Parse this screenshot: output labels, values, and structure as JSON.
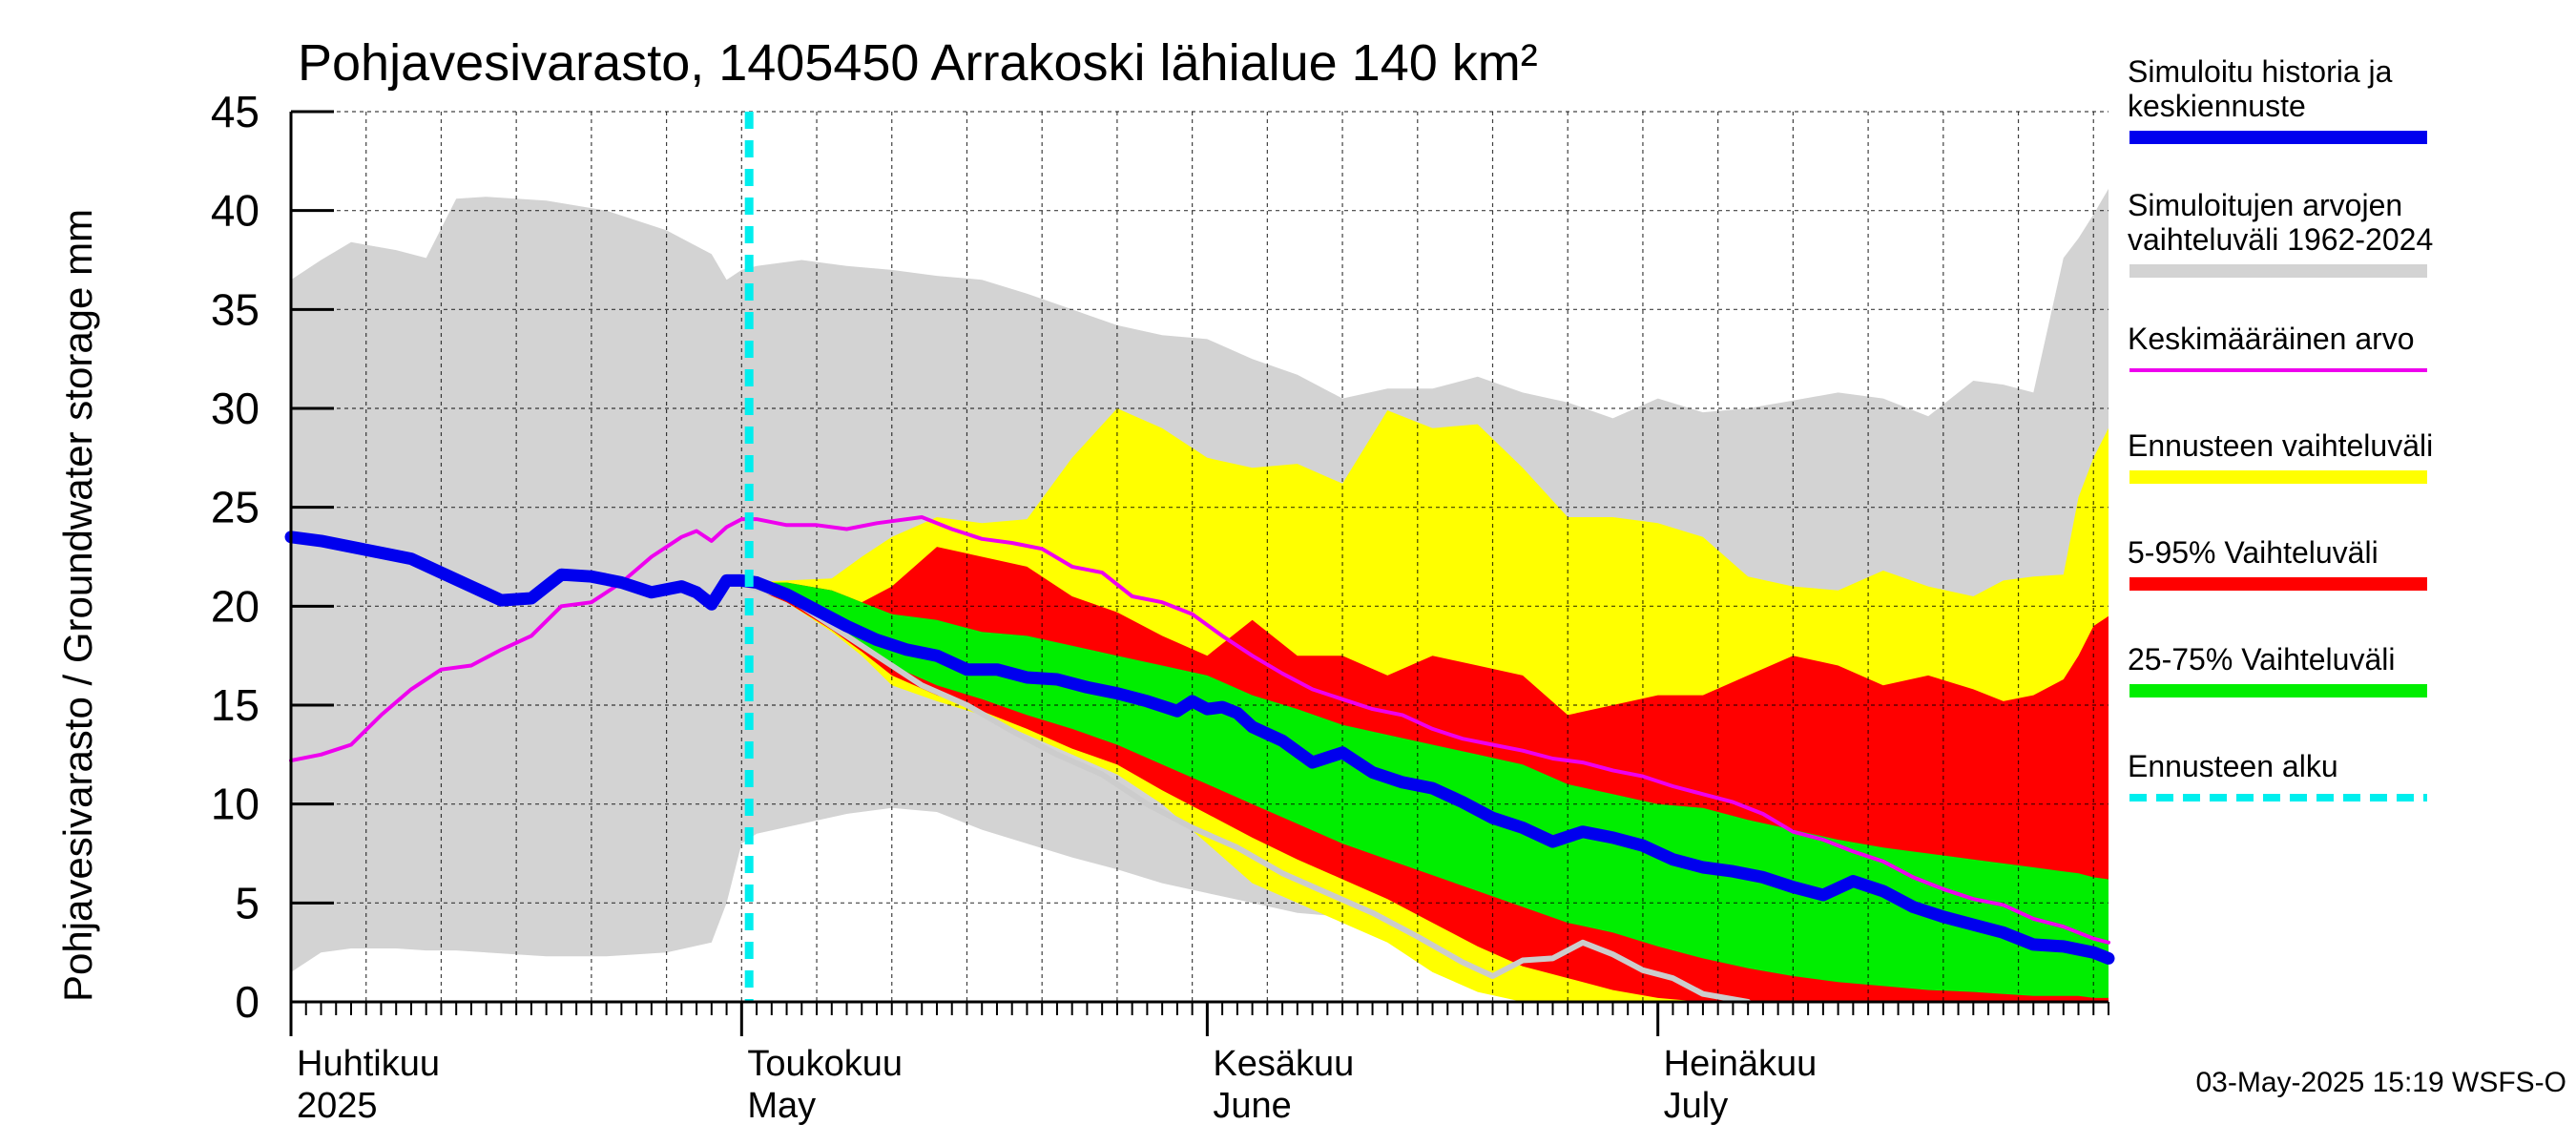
{
  "chart_data": {
    "type": "area",
    "title": "Pohjavesivarasto, 1405450 Arrakoski lähialue 140 km²",
    "ylabel": "Pohjavesivarasto / Groundwater storage   mm",
    "ylim": [
      0,
      45
    ],
    "yticks": [
      0,
      5,
      10,
      15,
      20,
      25,
      30,
      35,
      40,
      45
    ],
    "xlim": [
      0,
      121
    ],
    "month_labels": [
      {
        "day": 0,
        "top": "Huhtikuu",
        "bottom": "2025"
      },
      {
        "day": 30,
        "top": "Toukokuu",
        "bottom": "May"
      },
      {
        "day": 61,
        "top": "Kesäkuu",
        "bottom": "June"
      },
      {
        "day": 91,
        "top": "Heinäkuu",
        "bottom": "July"
      }
    ],
    "forecast_start_day": 30.5,
    "footer": "03-May-2025 15:19 WSFS-O",
    "legend": [
      {
        "label": "Simuloitu historia ja keskiennuste",
        "lines": [
          "Simuloitu historia ja",
          "keskiennuste"
        ],
        "color": "#0000ee",
        "style": "thick"
      },
      {
        "label": "Simuloitujen arvojen vaihteluväli 1962-2024",
        "lines": [
          "Simuloitujen arvojen",
          "vaihteluväli 1962-2024"
        ],
        "color": "#d3d3d3",
        "style": "thick"
      },
      {
        "label": "Keskimääräinen arvo",
        "lines": [
          "Keskimääräinen arvo"
        ],
        "color": "#ee00ee",
        "style": "thin"
      },
      {
        "label": "Ennusteen vaihteluväli",
        "lines": [
          "Ennusteen vaihteluväli"
        ],
        "color": "#ffff00",
        "style": "thick"
      },
      {
        "label": "5-95% Vaihteluväli",
        "lines": [
          "5-95% Vaihteluväli"
        ],
        "color": "#ff0000",
        "style": "thick"
      },
      {
        "label": "25-75% Vaihteluväli",
        "lines": [
          "25-75% Vaihteluväli"
        ],
        "color": "#00ee00",
        "style": "thick"
      },
      {
        "label": "Ennusteen alku",
        "lines": [
          "Ennusteen alku"
        ],
        "color": "#00eeee",
        "style": "dashed"
      }
    ],
    "bands": {
      "history_range": {
        "color": "#d3d3d3",
        "x": [
          0,
          2,
          4,
          7,
          9,
          11,
          13,
          17,
          21,
          25,
          28,
          29,
          30,
          31,
          34,
          37,
          40,
          43,
          46,
          49,
          52,
          55,
          58,
          61,
          64,
          67,
          70,
          73,
          76,
          79,
          82,
          85,
          88,
          91,
          94,
          97,
          100,
          103,
          106,
          109,
          112,
          114,
          116,
          118,
          119,
          120,
          121
        ],
        "upper": [
          36.5,
          37.5,
          38.4,
          38,
          37.6,
          40.6,
          40.7,
          40.5,
          40,
          39,
          37.8,
          36.5,
          37,
          37.2,
          37.5,
          37.2,
          37,
          36.7,
          36.5,
          35.8,
          35,
          34.2,
          33.7,
          33.5,
          32.5,
          31.7,
          30.5,
          31,
          31,
          31.6,
          30.8,
          30.3,
          29.5,
          30.5,
          29.8,
          30,
          30.4,
          30.8,
          30.5,
          29.6,
          31.4,
          31.2,
          30.8,
          37.6,
          38.6,
          39.8,
          41.1
        ],
        "lower": [
          1.5,
          2.5,
          2.7,
          2.7,
          2.6,
          2.6,
          2.5,
          2.3,
          2.3,
          2.5,
          3,
          5,
          8,
          8.5,
          9,
          9.5,
          9.8,
          9.6,
          8.7,
          8,
          7.3,
          6.7,
          6,
          5.5,
          5,
          4.5,
          4.3,
          4,
          4,
          3.6,
          3,
          2.2,
          1.6,
          1,
          0.4,
          0,
          0,
          0,
          0,
          0,
          0,
          0,
          0,
          0,
          0,
          0,
          0
        ]
      },
      "forecast_range": {
        "color": "#ffff00",
        "x": [
          30.5,
          33,
          36,
          38,
          40,
          43,
          46,
          49,
          52,
          55,
          58,
          61,
          64,
          67,
          70,
          73,
          76,
          79,
          82,
          85,
          88,
          91,
          94,
          97,
          100,
          103,
          106,
          109,
          112,
          114,
          116,
          118,
          119,
          120,
          121
        ],
        "upper": [
          21.2,
          21.3,
          21.4,
          22.5,
          23.5,
          24.5,
          24.2,
          24.4,
          27.5,
          30,
          29,
          27.5,
          27,
          27.2,
          26.2,
          29.9,
          29,
          29.2,
          27,
          24.5,
          24.5,
          24.2,
          23.5,
          21.5,
          21,
          20.8,
          21.8,
          21,
          20.5,
          21.3,
          21.5,
          21.6,
          25.5,
          27.5,
          29
        ],
        "lower": [
          21,
          20.2,
          18.7,
          17.5,
          16,
          15.2,
          14.5,
          13.5,
          12.5,
          11.5,
          10,
          8,
          6,
          5,
          4,
          3,
          1.5,
          0.5,
          0,
          0,
          0,
          0,
          0,
          0,
          0,
          0,
          0,
          0,
          0,
          0,
          0,
          0,
          0,
          0,
          0
        ]
      },
      "p5_95": {
        "color": "#ff0000",
        "x": [
          30.5,
          33,
          36,
          38,
          40,
          43,
          46,
          49,
          52,
          55,
          58,
          61,
          64,
          67,
          70,
          73,
          76,
          79,
          82,
          85,
          88,
          91,
          94,
          97,
          100,
          103,
          106,
          109,
          112,
          114,
          116,
          118,
          119,
          120,
          121
        ],
        "upper": [
          21.2,
          21.2,
          20.8,
          20.2,
          21,
          23,
          22.5,
          22,
          20.5,
          19.7,
          18.5,
          17.5,
          19.3,
          17.5,
          17.5,
          16.5,
          17.5,
          17,
          16.5,
          14.5,
          15,
          15.5,
          15.5,
          16.5,
          17.5,
          17,
          16,
          16.5,
          15.8,
          15.2,
          15.5,
          16.3,
          17.5,
          19,
          19.5
        ],
        "lower": [
          21,
          20.2,
          18.8,
          17.7,
          16.5,
          15.5,
          14.7,
          13.8,
          12.8,
          12,
          10.7,
          9.5,
          8.3,
          7.2,
          6.2,
          5.2,
          4,
          2.8,
          1.8,
          1.2,
          0.6,
          0.2,
          0,
          0,
          0,
          0,
          0,
          0,
          0,
          0,
          0,
          0,
          0,
          0,
          0
        ]
      },
      "p25_75": {
        "color": "#00ee00",
        "x": [
          30.5,
          33,
          36,
          38,
          40,
          43,
          46,
          49,
          52,
          55,
          58,
          61,
          64,
          67,
          70,
          73,
          76,
          79,
          82,
          85,
          88,
          91,
          94,
          97,
          100,
          103,
          106,
          109,
          112,
          114,
          116,
          118,
          119,
          120,
          121
        ],
        "upper": [
          21.2,
          21.2,
          20.8,
          20.2,
          19.6,
          19.3,
          18.7,
          18.5,
          18,
          17.5,
          17,
          16.5,
          15.5,
          14.8,
          14,
          13.5,
          13,
          12.5,
          12,
          11,
          10.5,
          10,
          9.8,
          9.2,
          8.7,
          8.2,
          7.8,
          7.5,
          7.2,
          7,
          6.8,
          6.6,
          6.5,
          6.3,
          6.2
        ],
        "lower": [
          21,
          20.5,
          19.2,
          18,
          17,
          16,
          15.3,
          14.5,
          13.8,
          13,
          12,
          11,
          10,
          9,
          8,
          7.2,
          6.4,
          5.6,
          4.8,
          4,
          3.5,
          2.8,
          2.2,
          1.7,
          1.3,
          1,
          0.8,
          0.6,
          0.5,
          0.4,
          0.3,
          0.3,
          0.3,
          0.2,
          0.2
        ]
      }
    },
    "series": [
      {
        "name": "Keskimääräinen arvo",
        "color": "#ee00ee",
        "x": [
          0,
          2,
          4,
          6,
          8,
          10,
          12,
          14,
          16,
          18,
          20,
          22,
          24,
          26,
          27,
          28,
          29,
          30,
          31,
          33,
          35,
          37,
          39,
          40,
          42,
          44,
          46,
          48,
          50,
          52,
          54,
          56,
          58,
          60,
          62,
          64,
          66,
          68,
          70,
          72,
          74,
          76,
          78,
          80,
          82,
          84,
          86,
          88,
          90,
          92,
          94,
          96,
          98,
          100,
          102,
          104,
          106,
          108,
          110,
          112,
          114,
          116,
          118,
          120,
          121
        ],
        "values": [
          12.2,
          12.5,
          13,
          14.5,
          15.8,
          16.8,
          17,
          17.8,
          18.5,
          20,
          20.2,
          21.2,
          22.5,
          23.5,
          23.8,
          23.3,
          24,
          24.4,
          24.4,
          24.1,
          24.1,
          23.9,
          24.2,
          24.3,
          24.5,
          23.9,
          23.4,
          23.2,
          22.9,
          22,
          21.7,
          20.5,
          20.2,
          19.6,
          18.5,
          17.5,
          16.6,
          15.8,
          15.3,
          14.8,
          14.5,
          13.8,
          13.3,
          13,
          12.7,
          12.3,
          12.1,
          11.7,
          11.4,
          10.9,
          10.5,
          10.1,
          9.5,
          8.6,
          8.2,
          7.6,
          7.1,
          6.3,
          5.7,
          5.2,
          4.9,
          4.2,
          3.8,
          3.2,
          3
        ]
      },
      {
        "name": "Simuloitu historia ja keskiennuste",
        "color": "#0000ee",
        "x": [
          0,
          2,
          4,
          6,
          8,
          10,
          12,
          14,
          16,
          17,
          18,
          20,
          22,
          24,
          26,
          27,
          28,
          29,
          30,
          31,
          33,
          35,
          37,
          39,
          41,
          43,
          45,
          47,
          49,
          51,
          53,
          55,
          57,
          59,
          60,
          61,
          62,
          63,
          64,
          66,
          68,
          70,
          72,
          74,
          76,
          78,
          80,
          82,
          84,
          86,
          88,
          90,
          92,
          94,
          96,
          98,
          100,
          102,
          104,
          106,
          108,
          110,
          112,
          114,
          116,
          118,
          120,
          121
        ],
        "values": [
          23.5,
          23.3,
          23,
          22.7,
          22.4,
          21.7,
          21,
          20.3,
          20.4,
          21,
          21.6,
          21.5,
          21.2,
          20.7,
          21,
          20.7,
          20.1,
          21.3,
          21.3,
          21.2,
          20.6,
          19.8,
          19,
          18.3,
          17.8,
          17.5,
          16.8,
          16.8,
          16.4,
          16.3,
          15.9,
          15.6,
          15.2,
          14.7,
          15.2,
          14.8,
          14.9,
          14.6,
          13.9,
          13.2,
          12.1,
          12.6,
          11.6,
          11.1,
          10.8,
          10.1,
          9.3,
          8.8,
          8.1,
          8.6,
          8.3,
          7.9,
          7.2,
          6.8,
          6.6,
          6.3,
          5.8,
          5.4,
          6.1,
          5.6,
          4.8,
          4.3,
          3.9,
          3.5,
          2.9,
          2.8,
          2.5,
          2.2
        ]
      },
      {
        "name": "Simuloitu minimi",
        "color": "#cccccc",
        "x": [
          30.5,
          33,
          36,
          39,
          42,
          45,
          48,
          51,
          54,
          57,
          60,
          63,
          66,
          69,
          72,
          75,
          78,
          80,
          82,
          84,
          86,
          88,
          90,
          92,
          94,
          97
        ],
        "values": [
          21,
          20.5,
          19,
          17.5,
          16,
          15,
          13.7,
          12.5,
          11.5,
          10,
          8.8,
          7.8,
          6.5,
          5.5,
          4.5,
          3.3,
          2,
          1.3,
          2.1,
          2.2,
          3,
          2.4,
          1.6,
          1.2,
          0.4,
          0
        ]
      }
    ]
  }
}
